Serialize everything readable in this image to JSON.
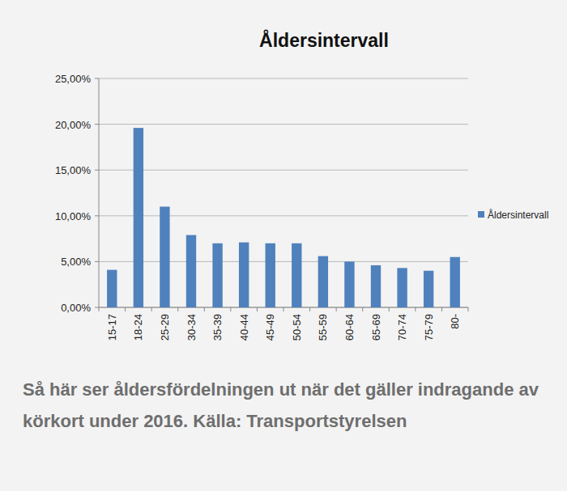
{
  "chart_data": {
    "type": "bar",
    "title": "Åldersintervall",
    "categories": [
      "15-17",
      "18-24",
      "25-29",
      "30-34",
      "35-39",
      "40-44",
      "45-49",
      "50-54",
      "55-59",
      "60-64",
      "65-69",
      "70-74",
      "75-79",
      "80-"
    ],
    "series": [
      {
        "name": "Åldersintervall",
        "color": "#4f81bd",
        "values": [
          4.1,
          19.6,
          11.0,
          7.9,
          7.0,
          7.1,
          7.0,
          7.0,
          5.6,
          5.0,
          4.6,
          4.3,
          4.0,
          5.5
        ]
      }
    ],
    "ylim": [
      0,
      25
    ],
    "yticks": [
      {
        "value": 0,
        "label": "0,00%"
      },
      {
        "value": 5,
        "label": "5,00%"
      },
      {
        "value": 10,
        "label": "10,00%"
      },
      {
        "value": 15,
        "label": "15,00%"
      },
      {
        "value": 20,
        "label": "20,00%"
      },
      {
        "value": 25,
        "label": "25,00%"
      }
    ],
    "grid": true,
    "legend": "right",
    "annotations": [
      "Så här ser åldersfördelningen ut när det gäller indragande av körkort under 2016. Källa: Transportstyrelsen"
    ]
  }
}
